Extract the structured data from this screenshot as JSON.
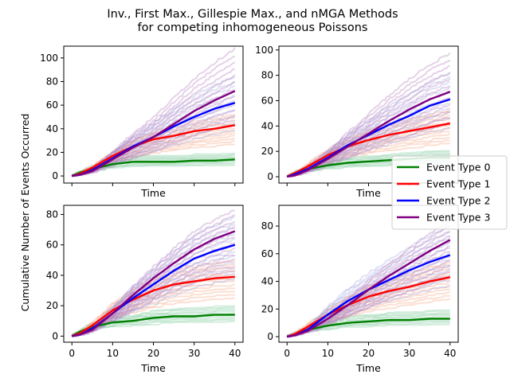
{
  "figure": {
    "title_line1": "Inv., First Max., Gillespie Max., and nMGA Methods",
    "title_line2": "for competing inhomogeneous Poissons",
    "ylabel": "Cumulative Number of Events Occurred"
  },
  "legend": {
    "entries": [
      {
        "label": "Event Type 0",
        "color": "#008000"
      },
      {
        "label": "Event Type 1",
        "color": "#ff0000"
      },
      {
        "label": "Event Type 2",
        "color": "#0000ff"
      },
      {
        "label": "Event Type 3",
        "color": "#800080"
      }
    ],
    "placement": "right-middle"
  },
  "chart_data": [
    {
      "type": "line",
      "panel": "top-left",
      "xlabel": "Time",
      "xlim": [
        -2,
        42
      ],
      "ylim": [
        -6,
        110
      ],
      "xticks": [
        0,
        10,
        20,
        30,
        40
      ],
      "yticks": [
        0,
        20,
        40,
        60,
        80,
        100
      ],
      "show_xticklabels": false,
      "x": [
        0,
        2,
        5,
        10,
        15,
        20,
        25,
        30,
        35,
        40
      ],
      "series": [
        {
          "name": "Event Type 0",
          "color": "#008000",
          "values": [
            0,
            3,
            6,
            10,
            12,
            12,
            12,
            13,
            13,
            14
          ]
        },
        {
          "name": "Event Type 1",
          "color": "#ff0000",
          "values": [
            0,
            2,
            7,
            17,
            25,
            31,
            34,
            38,
            40,
            43
          ]
        },
        {
          "name": "Event Type 2",
          "color": "#0000ff",
          "values": [
            0,
            1,
            5,
            15,
            25,
            33,
            42,
            50,
            57,
            62
          ]
        },
        {
          "name": "Event Type 3",
          "color": "#800080",
          "values": [
            0,
            1,
            4,
            14,
            24,
            33,
            44,
            55,
            64,
            72
          ]
        }
      ],
      "faint_max": [
        1.35,
        1.2,
        1.35,
        1.5
      ]
    },
    {
      "type": "line",
      "panel": "top-right",
      "xlabel": "Time",
      "xlim": [
        -2,
        42
      ],
      "ylim": [
        -5,
        103
      ],
      "xticks": [
        0,
        10,
        20,
        30,
        40
      ],
      "yticks": [
        0,
        20,
        40,
        60,
        80,
        100
      ],
      "show_xticklabels": false,
      "x": [
        0,
        2,
        5,
        10,
        15,
        20,
        25,
        30,
        35,
        40
      ],
      "series": [
        {
          "name": "Event Type 0",
          "color": "#008000",
          "values": [
            0,
            3,
            6,
            9,
            11,
            12,
            13,
            14,
            15,
            15
          ]
        },
        {
          "name": "Event Type 1",
          "color": "#ff0000",
          "values": [
            0,
            3,
            8,
            17,
            24,
            29,
            33,
            36,
            39,
            42
          ]
        },
        {
          "name": "Event Type 2",
          "color": "#0000ff",
          "values": [
            0,
            2,
            6,
            15,
            25,
            33,
            41,
            48,
            56,
            61
          ]
        },
        {
          "name": "Event Type 3",
          "color": "#800080",
          "values": [
            0,
            1,
            5,
            14,
            24,
            34,
            44,
            53,
            61,
            67
          ]
        }
      ],
      "faint_max": [
        1.3,
        1.25,
        1.35,
        1.45
      ]
    },
    {
      "type": "line",
      "panel": "bottom-left",
      "xlabel": "Time",
      "xlim": [
        -2,
        42
      ],
      "ylim": [
        -4,
        86
      ],
      "xticks": [
        0,
        10,
        20,
        30,
        40
      ],
      "yticks": [
        0,
        20,
        40,
        60,
        80
      ],
      "show_xticklabels": true,
      "x": [
        0,
        2,
        5,
        10,
        15,
        20,
        25,
        30,
        35,
        40
      ],
      "series": [
        {
          "name": "Event Type 0",
          "color": "#008000",
          "values": [
            0,
            3,
            6,
            9,
            10,
            12,
            13,
            13,
            14,
            14
          ]
        },
        {
          "name": "Event Type 1",
          "color": "#ff0000",
          "values": [
            0,
            2,
            7,
            17,
            24,
            30,
            34,
            36,
            38,
            39
          ]
        },
        {
          "name": "Event Type 2",
          "color": "#0000ff",
          "values": [
            0,
            1,
            5,
            15,
            25,
            34,
            43,
            51,
            56,
            60
          ]
        },
        {
          "name": "Event Type 3",
          "color": "#800080",
          "values": [
            0,
            1,
            4,
            15,
            27,
            38,
            48,
            57,
            64,
            69
          ]
        }
      ],
      "faint_max": [
        1.35,
        1.25,
        1.3,
        1.2
      ]
    },
    {
      "type": "line",
      "panel": "bottom-right",
      "xlabel": "Time",
      "xlim": [
        -2,
        42
      ],
      "ylim": [
        -4,
        95
      ],
      "xticks": [
        0,
        10,
        20,
        30,
        40
      ],
      "yticks": [
        0,
        20,
        40,
        60,
        80
      ],
      "show_xticklabels": true,
      "x": [
        0,
        2,
        5,
        10,
        15,
        20,
        25,
        30,
        35,
        40
      ],
      "series": [
        {
          "name": "Event Type 0",
          "color": "#008000",
          "values": [
            0,
            2,
            5,
            8,
            10,
            11,
            12,
            12,
            13,
            13
          ]
        },
        {
          "name": "Event Type 1",
          "color": "#ff0000",
          "values": [
            0,
            2,
            7,
            16,
            23,
            29,
            33,
            36,
            40,
            43
          ]
        },
        {
          "name": "Event Type 2",
          "color": "#0000ff",
          "values": [
            0,
            1,
            5,
            16,
            26,
            34,
            41,
            48,
            54,
            59
          ]
        },
        {
          "name": "Event Type 3",
          "color": "#800080",
          "values": [
            0,
            1,
            4,
            13,
            23,
            34,
            44,
            53,
            62,
            70
          ]
        }
      ],
      "faint_max": [
        1.4,
        1.25,
        1.35,
        1.2
      ]
    }
  ]
}
